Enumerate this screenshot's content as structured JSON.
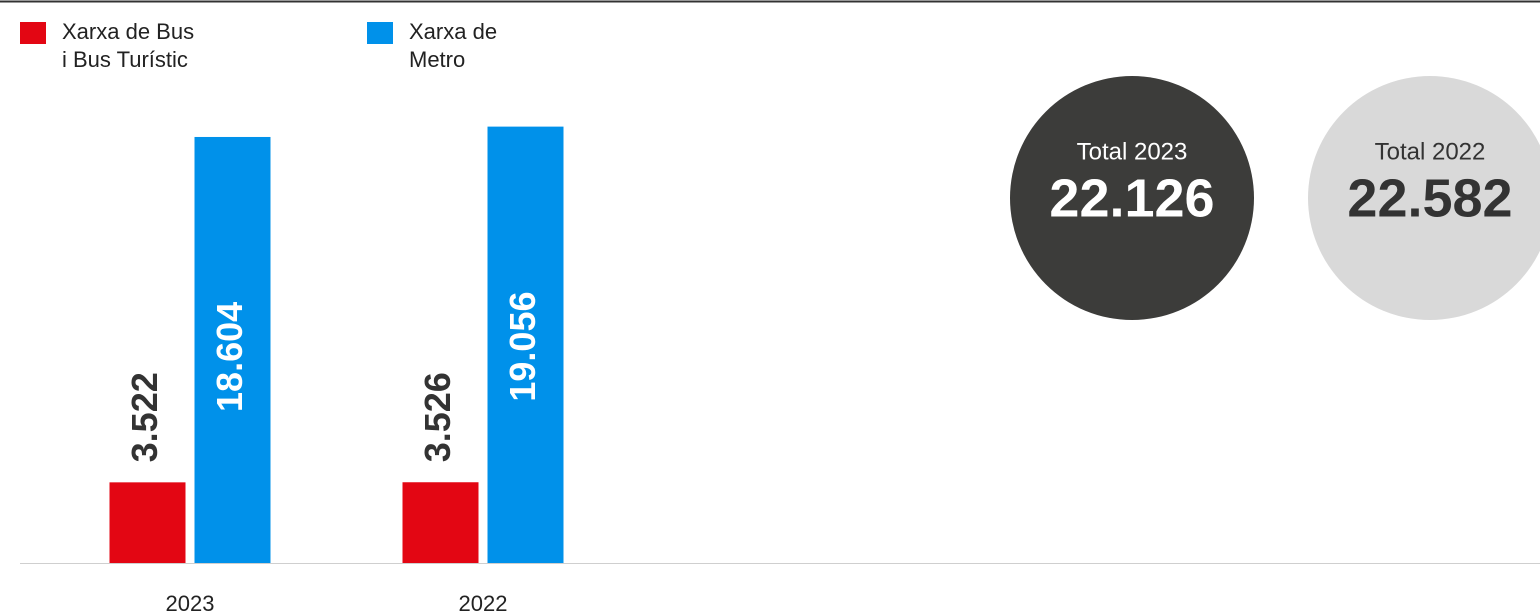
{
  "chart_data": {
    "type": "bar",
    "categories": [
      "2023",
      "2022"
    ],
    "series": [
      {
        "name": "Xarxa de Bus i Bus Turístic",
        "color": "#e30613",
        "values": [
          3522,
          3526
        ],
        "value_labels": [
          "3.522",
          "3.526"
        ]
      },
      {
        "name": "Xarxa de Metro",
        "color": "#0091ea",
        "values": [
          18604,
          19056
        ],
        "value_labels": [
          "18.604",
          "19.056"
        ]
      }
    ],
    "ylim": [
      0,
      20000
    ],
    "totals": [
      {
        "label": "Total 2023",
        "value": 22126,
        "value_label": "22.126",
        "color": "#3c3c3a"
      },
      {
        "label": "Total 2022",
        "value": 22582,
        "value_label": "22.582",
        "color": "#d9d9d9"
      }
    ]
  }
}
